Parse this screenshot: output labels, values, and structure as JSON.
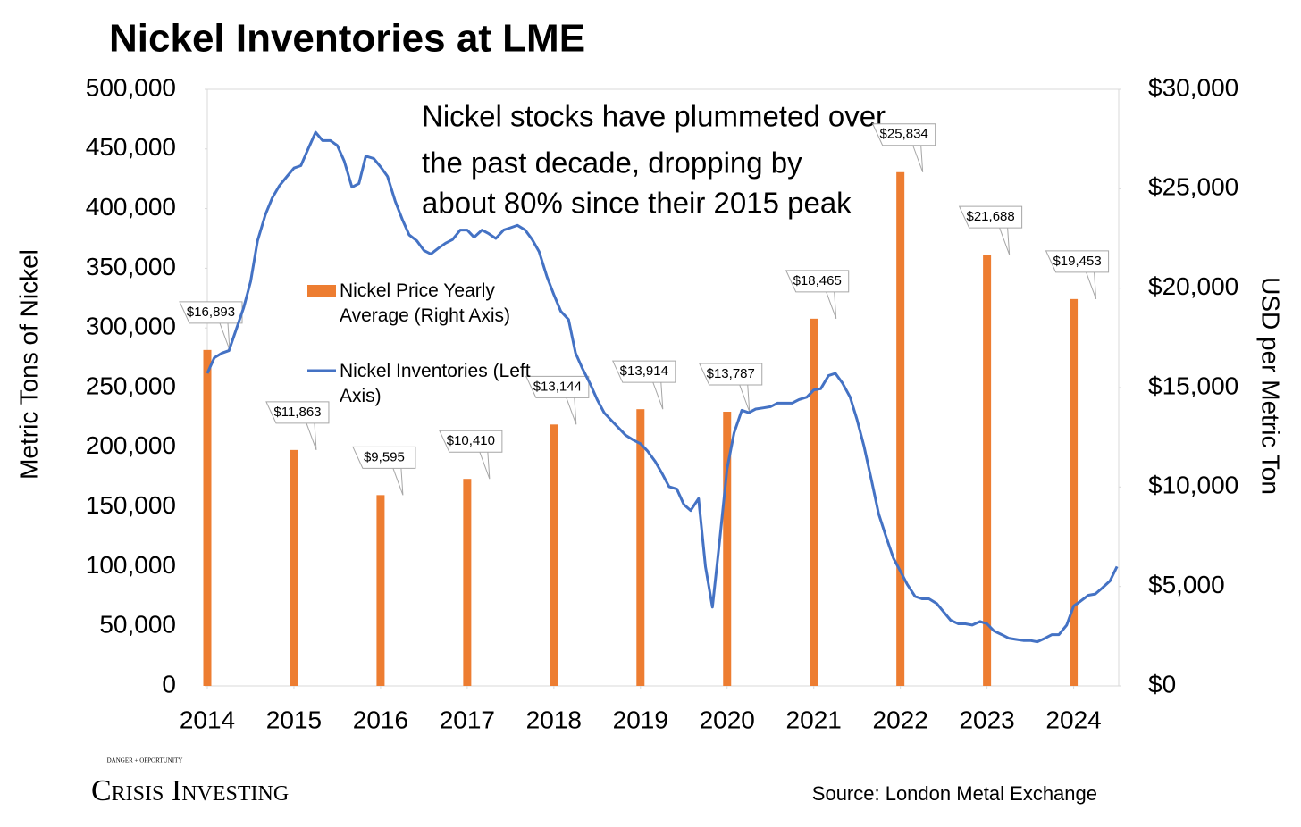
{
  "chart_data": {
    "type": "combo",
    "title": "Nickel Inventories at LME",
    "ylabel": "Metric Tons of Nickel",
    "y2label": "USD per Metric Ton",
    "annotation": [
      "Nickel stocks have plummeted over",
      "the past decade, dropping by",
      "about 80% since their 2015 peak"
    ],
    "source": "Source: London Metal Exchange",
    "logo": {
      "tagline": "DANGER + OPPORTUNITY",
      "name": "Crisis Investing"
    },
    "xlim": [
      2014,
      2024.52
    ],
    "xticks": [
      2014,
      2015,
      2016,
      2017,
      2018,
      2019,
      2020,
      2021,
      2022,
      2023,
      2024
    ],
    "ylim": [
      0,
      500000
    ],
    "yticks": [
      0,
      {
        "value": 50000,
        "label": "50,000"
      },
      {
        "value": 100000,
        "label": "100,000"
      },
      {
        "value": 150000,
        "label": "150,000"
      },
      {
        "value": 200000,
        "label": "200,000"
      },
      {
        "value": 250000,
        "label": "250,000"
      },
      {
        "value": 300000,
        "label": "300,000"
      },
      {
        "value": 350000,
        "label": "350,000"
      },
      {
        "value": 400000,
        "label": "400,000"
      },
      {
        "value": 450000,
        "label": "450,000"
      },
      {
        "value": 500000,
        "label": "500,000"
      }
    ],
    "y2lim": [
      0,
      30000
    ],
    "y2ticks": [
      {
        "value": 0,
        "label": "$0"
      },
      {
        "value": 5000,
        "label": "$5,000"
      },
      {
        "value": 10000,
        "label": "$10,000"
      },
      {
        "value": 15000,
        "label": "$15,000"
      },
      {
        "value": 20000,
        "label": "$20,000"
      },
      {
        "value": 25000,
        "label": "$25,000"
      },
      {
        "value": 30000,
        "label": "$30,000"
      }
    ],
    "series": [
      {
        "name": "Nickel Price Yearly Average (Right Axis)",
        "type": "bar",
        "axis": "y2",
        "color": "#ed7d31",
        "x": [
          2014,
          2015,
          2016,
          2017,
          2018,
          2019,
          2020,
          2021,
          2022,
          2023,
          2024
        ],
        "values": [
          16893,
          11863,
          9595,
          10410,
          13144,
          13914,
          13787,
          18465,
          25834,
          21688,
          19453
        ],
        "value_labels": [
          "$16,893",
          "$11,863",
          "$9,595",
          "$10,410",
          "$13,144",
          "$13,914",
          "$13,787",
          "$18,465",
          "$25,834",
          "$21,688",
          "$19,453"
        ]
      },
      {
        "name": "Nickel Inventories (Left Axis)",
        "type": "line",
        "color": "#4472c4",
        "x": [
          2014.0,
          2014.08,
          2014.17,
          2014.25,
          2014.33,
          2014.42,
          2014.5,
          2014.58,
          2014.67,
          2014.75,
          2014.83,
          2014.92,
          2015.0,
          2015.08,
          2015.17,
          2015.25,
          2015.33,
          2015.42,
          2015.5,
          2015.58,
          2015.67,
          2015.75,
          2015.83,
          2015.92,
          2016.0,
          2016.08,
          2016.17,
          2016.25,
          2016.33,
          2016.42,
          2016.5,
          2016.58,
          2016.67,
          2016.75,
          2016.83,
          2016.92,
          2017.0,
          2017.08,
          2017.17,
          2017.25,
          2017.33,
          2017.42,
          2017.5,
          2017.58,
          2017.67,
          2017.75,
          2017.83,
          2017.92,
          2018.0,
          2018.08,
          2018.17,
          2018.25,
          2018.33,
          2018.42,
          2018.5,
          2018.58,
          2018.67,
          2018.75,
          2018.83,
          2018.92,
          2019.0,
          2019.08,
          2019.17,
          2019.25,
          2019.33,
          2019.42,
          2019.5,
          2019.58,
          2019.67,
          2019.75,
          2019.83,
          2019.92,
          2020.0,
          2020.08,
          2020.17,
          2020.25,
          2020.33,
          2020.42,
          2020.5,
          2020.58,
          2020.67,
          2020.75,
          2020.83,
          2020.92,
          2021.0,
          2021.08,
          2021.17,
          2021.25,
          2021.33,
          2021.42,
          2021.5,
          2021.58,
          2021.67,
          2021.75,
          2021.83,
          2021.92,
          2022.0,
          2022.08,
          2022.17,
          2022.25,
          2022.33,
          2022.42,
          2022.5,
          2022.58,
          2022.67,
          2022.75,
          2022.83,
          2022.92,
          2023.0,
          2023.08,
          2023.17,
          2023.25,
          2023.33,
          2023.42,
          2023.5,
          2023.58,
          2023.67,
          2023.75,
          2023.83,
          2023.92,
          2024.0,
          2024.08,
          2024.17,
          2024.25,
          2024.33,
          2024.42,
          2024.5
        ],
        "values": [
          262000,
          275000,
          279000,
          281000,
          298000,
          317000,
          339000,
          373000,
          395000,
          409000,
          419000,
          427000,
          434000,
          436000,
          451000,
          464000,
          457000,
          457000,
          453000,
          440000,
          418000,
          421000,
          444000,
          442000,
          435000,
          427000,
          406000,
          391000,
          378000,
          373000,
          365000,
          362000,
          367000,
          371000,
          374000,
          382000,
          382000,
          376000,
          382000,
          379000,
          375000,
          382000,
          384000,
          386000,
          382000,
          374000,
          364000,
          343000,
          328000,
          314000,
          307000,
          279000,
          266000,
          253000,
          240000,
          229000,
          222000,
          216000,
          210000,
          206000,
          203000,
          197000,
          188000,
          178000,
          167000,
          165000,
          152000,
          147000,
          157000,
          100000,
          66000,
          126000,
          182000,
          212000,
          231000,
          229000,
          232000,
          233000,
          234000,
          237000,
          237000,
          237000,
          240000,
          242000,
          248000,
          249000,
          260000,
          262000,
          254000,
          242000,
          223000,
          201000,
          171000,
          144000,
          126000,
          107000,
          96000,
          85000,
          75000,
          73000,
          73000,
          69000,
          62000,
          55000,
          52000,
          52000,
          51000,
          54000,
          52000,
          46000,
          43000,
          40000,
          39000,
          38000,
          38000,
          37000,
          40000,
          43000,
          43000,
          51000,
          67000,
          71000,
          76000,
          77000,
          82000,
          88000,
          100000
        ]
      }
    ]
  }
}
